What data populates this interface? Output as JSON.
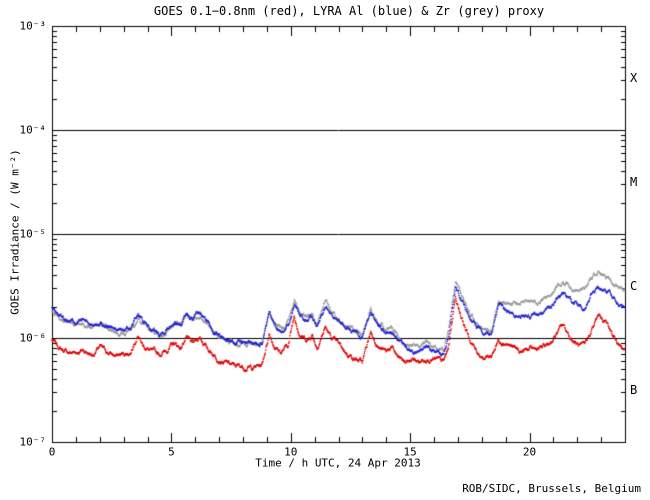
{
  "header": {
    "title": "GOES 0.1−0.8nm (red), LYRA Al (blue) & Zr (grey) proxy"
  },
  "footer": {
    "credit": "ROB/SIDC, Brussels, Belgium"
  },
  "axes": {
    "xlabel": "Time / h UTC, 24 Apr 2013",
    "ylabel": "GOES Irradiance / (W m⁻²)",
    "x_tick_labels": [
      "0",
      "5",
      "10",
      "15",
      "20"
    ],
    "y_tick_labels": [
      "10⁻³",
      "10⁻⁴",
      "10⁻⁵",
      "10⁻⁶",
      "10⁻⁷"
    ],
    "flare_class_labels": [
      "X",
      "M",
      "C",
      "B"
    ]
  },
  "colors": {
    "goes_red": "#dd0000",
    "lyra_al_blue": "#2222cc",
    "lyra_zr_grey": "#999999",
    "axis": "#000000",
    "background": "#ffffff"
  },
  "chart_data": {
    "type": "scatter",
    "title": "GOES 0.1−0.8nm (red), LYRA Al (blue) & Zr (grey) proxy",
    "xlabel": "Time / h UTC, 24 Apr 2013",
    "ylabel": "GOES Irradiance / (W m⁻²)",
    "xlim": [
      0,
      24
    ],
    "ylog10_range": [
      -7,
      -3
    ],
    "grid": false,
    "x_tick_values": [
      0,
      5,
      10,
      15,
      20
    ],
    "x_minor_tick_step_hours": 1,
    "y_tick_exponents": [
      -3,
      -4,
      -5,
      -6,
      -7
    ],
    "class_boundary_lines": [
      0.0001,
      1e-05,
      1e-06
    ],
    "class_label_log10_positions": [
      -3.5,
      -4.5,
      -5.5,
      -6.5
    ],
    "x": [
      0,
      0.3,
      0.7,
      1,
      1.3,
      1.7,
      2,
      2.3,
      2.7,
      3,
      3.3,
      3.6,
      3.8,
      4.2,
      4.5,
      4.8,
      5.1,
      5.4,
      5.6,
      5.9,
      6.2,
      6.5,
      6.8,
      7.2,
      7.6,
      8,
      8.4,
      8.8,
      9.1,
      9.3,
      9.6,
      9.9,
      10.15,
      10.4,
      10.7,
      10.9,
      11.1,
      11.45,
      11.7,
      12,
      12.3,
      12.7,
      13,
      13.35,
      13.7,
      14,
      14.2,
      14.5,
      14.8,
      15.1,
      15.4,
      15.7,
      16,
      16.4,
      16.6,
      16.9,
      17.2,
      17.5,
      17.8,
      18.1,
      18.4,
      18.7,
      19,
      19.3,
      19.6,
      19.9,
      20.2,
      20.5,
      20.8,
      21.1,
      21.4,
      21.7,
      22,
      22.3,
      22.6,
      22.9,
      23.2,
      23.5,
      23.8,
      24
    ],
    "series": [
      {
        "name": "GOES 0.1-0.8nm",
        "color": "#dd0000",
        "values": [
          9.6e-07,
          8e-07,
          7.2e-07,
          7.3e-07,
          7.7e-07,
          6.9e-07,
          8.2e-07,
          7.3e-07,
          6.7e-07,
          7e-07,
          7.3e-07,
          1.14e-06,
          8.6e-07,
          7.3e-07,
          6.9e-07,
          7.7e-07,
          8.8e-07,
          8e-07,
          1.02e-06,
          8.6e-07,
          1.02e-06,
          8e-07,
          6.9e-07,
          5.9e-07,
          5.4e-07,
          5.3e-07,
          5.2e-07,
          5.5e-07,
          1.12e-06,
          8.6e-07,
          7.3e-07,
          8.6e-07,
          1.66e-06,
          1.07e-06,
          9.6e-07,
          1.09e-06,
          8.2e-07,
          1.28e-06,
          1e-06,
          8.6e-07,
          7.3e-07,
          6.4e-07,
          5.8e-07,
          1.14e-06,
          8.2e-07,
          7.3e-07,
          8.2e-07,
          6.4e-07,
          5.8e-07,
          6.2e-07,
          5.9e-07,
          6.6e-07,
          6.2e-07,
          5.8e-07,
          7.7e-07,
          2.48e-06,
          1.49e-06,
          9.6e-07,
          7.3e-07,
          6.6e-07,
          6.7e-07,
          9.6e-07,
          9.2e-07,
          8.2e-07,
          7.3e-07,
          7.7e-07,
          7.7e-07,
          8e-07,
          8.6e-07,
          1.07e-06,
          1.33e-06,
          1.02e-06,
          8.6e-07,
          8e-07,
          1.19e-06,
          1.63e-06,
          1.43e-06,
          1.07e-06,
          8.6e-07,
          7.8e-07
        ]
      },
      {
        "name": "LYRA Al proxy",
        "color": "#2222cc",
        "values": [
          1.94e-06,
          1.66e-06,
          1.49e-06,
          1.43e-06,
          1.49e-06,
          1.33e-06,
          1.46e-06,
          1.33e-06,
          1.19e-06,
          1.19e-06,
          1.25e-06,
          1.7e-06,
          1.43e-06,
          1.19e-06,
          1.12e-06,
          1.25e-06,
          1.49e-06,
          1.36e-06,
          1.74e-06,
          1.49e-06,
          1.7e-06,
          1.43e-06,
          1.19e-06,
          1e-06,
          9.2e-07,
          8.9e-07,
          8.8e-07,
          9.4e-07,
          1.63e-06,
          1.33e-06,
          1.17e-06,
          1.33e-06,
          2.17e-06,
          1.66e-06,
          1.49e-06,
          1.59e-06,
          1.28e-06,
          2.08e-06,
          1.66e-06,
          1.43e-06,
          1.25e-06,
          1.12e-06,
          9.6e-07,
          1.74e-06,
          1.28e-06,
          1.12e-06,
          1.17e-06,
          9.6e-07,
          7.7e-07,
          7.3e-07,
          7.7e-07,
          8.2e-07,
          7.3e-07,
          6.9e-07,
          1.07e-06,
          3.16e-06,
          2.17e-06,
          1.56e-06,
          1.28e-06,
          1.17e-06,
          1.14e-06,
          2.08e-06,
          1.86e-06,
          1.7e-06,
          1.63e-06,
          1.66e-06,
          1.63e-06,
          1.74e-06,
          1.86e-06,
          2.32e-06,
          2.71e-06,
          2.32e-06,
          2.03e-06,
          1.94e-06,
          2.77e-06,
          3.1e-06,
          2.96e-06,
          2.54e-06,
          2.17e-06,
          1.98e-06
        ]
      },
      {
        "name": "LYRA Zr proxy",
        "color": "#999999",
        "values": [
          1.74e-06,
          1.56e-06,
          1.39e-06,
          1.33e-06,
          1.39e-06,
          1.25e-06,
          1.36e-06,
          1.25e-06,
          1.12e-06,
          1.12e-06,
          1.17e-06,
          1.59e-06,
          1.33e-06,
          1.12e-06,
          1.04e-06,
          1.17e-06,
          1.39e-06,
          1.28e-06,
          1.63e-06,
          1.39e-06,
          1.59e-06,
          1.33e-06,
          1.12e-06,
          9.4e-07,
          8.8e-07,
          8.6e-07,
          8.4e-07,
          8.9e-07,
          1.7e-06,
          1.36e-06,
          1.19e-06,
          1.36e-06,
          2.37e-06,
          1.78e-06,
          1.56e-06,
          1.66e-06,
          1.33e-06,
          2.32e-06,
          1.78e-06,
          1.49e-06,
          1.31e-06,
          1.17e-06,
          1.02e-06,
          1.9e-06,
          1.36e-06,
          1.22e-06,
          1.28e-06,
          1.04e-06,
          8.4e-07,
          8e-07,
          8.4e-07,
          9.2e-07,
          8e-07,
          7.5e-07,
          1.19e-06,
          3.46e-06,
          2.37e-06,
          1.7e-06,
          1.36e-06,
          1.22e-06,
          1.19e-06,
          2.27e-06,
          2.12e-06,
          2.17e-06,
          2.22e-06,
          2.27e-06,
          2.22e-06,
          2.37e-06,
          2.54e-06,
          3.1e-06,
          3.61e-06,
          3.1e-06,
          2.77e-06,
          2.89e-06,
          3.86e-06,
          4.13e-06,
          3.95e-06,
          3.46e-06,
          3.03e-06,
          2.89e-06
        ]
      }
    ]
  }
}
